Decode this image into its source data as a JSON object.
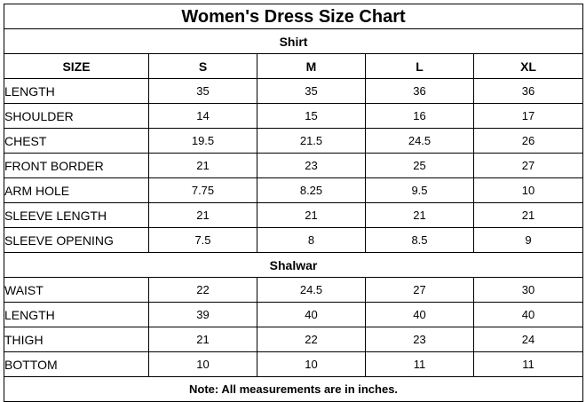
{
  "title": "Women's Dress Size Chart",
  "columns": [
    "SIZE",
    "S",
    "M",
    "L",
    "XL"
  ],
  "shirt": {
    "heading": "Shirt",
    "rows": [
      {
        "label": "LENGTH",
        "values": [
          "35",
          "35",
          "36",
          "36"
        ]
      },
      {
        "label": "SHOULDER",
        "values": [
          "14",
          "15",
          "16",
          "17"
        ]
      },
      {
        "label": "CHEST",
        "values": [
          "19.5",
          "21.5",
          "24.5",
          "26"
        ]
      },
      {
        "label": "FRONT BORDER",
        "values": [
          "21",
          "23",
          "25",
          "27"
        ]
      },
      {
        "label": "ARM HOLE",
        "values": [
          "7.75",
          "8.25",
          "9.5",
          "10"
        ]
      },
      {
        "label": "SLEEVE LENGTH",
        "values": [
          "21",
          "21",
          "21",
          "21"
        ]
      },
      {
        "label": "SLEEVE OPENING",
        "values": [
          "7.5",
          "8",
          "8.5",
          "9"
        ]
      }
    ]
  },
  "shalwar": {
    "heading": "Shalwar",
    "rows": [
      {
        "label": "WAIST",
        "values": [
          "22",
          "24.5",
          "27",
          "30"
        ]
      },
      {
        "label": "LENGTH",
        "values": [
          "39",
          "40",
          "40",
          "40"
        ]
      },
      {
        "label": "THIGH",
        "values": [
          "21",
          "22",
          "23",
          "24"
        ]
      },
      {
        "label": "BOTTOM",
        "values": [
          "10",
          "10",
          "11",
          "11"
        ]
      }
    ]
  },
  "note": "Note: All measurements are in inches."
}
